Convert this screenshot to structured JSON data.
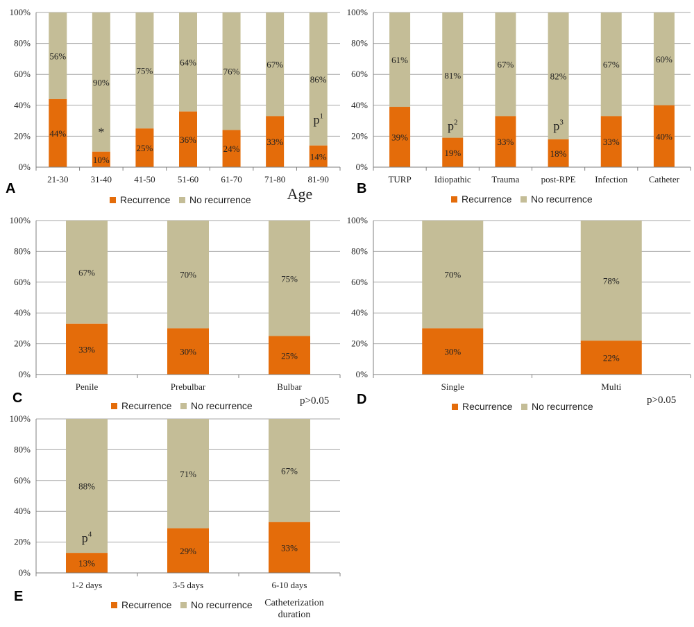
{
  "colors": {
    "recurrence": "#E46C0A",
    "no_recurrence": "#C4BD97",
    "grid": "#A6A6A6",
    "axis": "#7F7F7F",
    "text": "#222222"
  },
  "chart_data": [
    {
      "panel": "A",
      "type": "bar",
      "stacked": true,
      "categories": [
        "21-30",
        "31-40",
        "41-50",
        "51-60",
        "61-70",
        "71-80",
        "81-90"
      ],
      "series": [
        {
          "name": "Recurrence",
          "values": [
            44,
            10,
            25,
            36,
            24,
            33,
            14
          ]
        },
        {
          "name": "No recurrence",
          "values": [
            56,
            90,
            75,
            64,
            76,
            67,
            86
          ]
        }
      ],
      "value_labels": {
        "recurrence": [
          "44%",
          "10%",
          "25%",
          "36%",
          "24%",
          "33%",
          "14%"
        ],
        "no_recurrence": [
          "56%",
          "90%",
          "75%",
          "64%",
          "76%",
          "67%",
          "86%"
        ]
      },
      "yticks": [
        "0%",
        "20%",
        "40%",
        "60%",
        "80%",
        "100%"
      ],
      "ylim": [
        0,
        100
      ],
      "xlabel": "Age",
      "annotations": [
        {
          "category_index": 1,
          "at_value": 20,
          "text": "*",
          "sup": ""
        },
        {
          "category_index": 6,
          "at_value": 28,
          "text": "p",
          "sup": "1"
        }
      ],
      "legend": [
        "Recurrence",
        "No recurrence"
      ],
      "legend_position": "bottom",
      "grid": true
    },
    {
      "panel": "B",
      "type": "bar",
      "stacked": true,
      "categories": [
        "TURP",
        "Idiopathic",
        "Trauma",
        "post-RPE",
        "Infection",
        "Catheter"
      ],
      "series": [
        {
          "name": "Recurrence",
          "values": [
            39,
            19,
            33,
            18,
            33,
            40
          ]
        },
        {
          "name": "No recurrence",
          "values": [
            61,
            81,
            67,
            82,
            67,
            60
          ]
        }
      ],
      "value_labels": {
        "recurrence": [
          "39%",
          "19%",
          "33%",
          "18%",
          "33%",
          "40%"
        ],
        "no_recurrence": [
          "61%",
          "81%",
          "67%",
          "82%",
          "67%",
          "60%"
        ]
      },
      "yticks": [
        "0%",
        "20%",
        "40%",
        "60%",
        "80%",
        "100%"
      ],
      "ylim": [
        0,
        100
      ],
      "annotations": [
        {
          "category_index": 1,
          "at_value": 24,
          "text": "p",
          "sup": "2"
        },
        {
          "category_index": 3,
          "at_value": 24,
          "text": "p",
          "sup": "3"
        }
      ],
      "legend": [
        "Recurrence",
        "No recurrence"
      ],
      "legend_position": "bottom",
      "grid": true
    },
    {
      "panel": "C",
      "type": "bar",
      "stacked": true,
      "categories": [
        "Penile",
        "Prebulbar",
        "Bulbar"
      ],
      "series": [
        {
          "name": "Recurrence",
          "values": [
            33,
            30,
            25
          ]
        },
        {
          "name": "No recurrence",
          "values": [
            67,
            70,
            75
          ]
        }
      ],
      "value_labels": {
        "recurrence": [
          "33%",
          "30%",
          "25%"
        ],
        "no_recurrence": [
          "67%",
          "70%",
          "75%"
        ]
      },
      "yticks": [
        "0%",
        "20%",
        "40%",
        "60%",
        "80%",
        "100%"
      ],
      "ylim": [
        0,
        100
      ],
      "note": "p>0.05",
      "annotations": [],
      "legend": [
        "Recurrence",
        "No recurrence"
      ],
      "legend_position": "bottom",
      "grid": true
    },
    {
      "panel": "D",
      "type": "bar",
      "stacked": true,
      "categories": [
        "Single",
        "Multi"
      ],
      "series": [
        {
          "name": "Recurrence",
          "values": [
            30,
            22
          ]
        },
        {
          "name": "No recurrence",
          "values": [
            70,
            78
          ]
        }
      ],
      "value_labels": {
        "recurrence": [
          "30%",
          "22%"
        ],
        "no_recurrence": [
          "70%",
          "78%"
        ]
      },
      "yticks": [
        "0%",
        "20%",
        "40%",
        "60%",
        "80%",
        "100%"
      ],
      "ylim": [
        0,
        100
      ],
      "note": "p>0.05",
      "annotations": [],
      "legend": [
        "Recurrence",
        "No recurrence"
      ],
      "legend_position": "bottom",
      "grid": true
    },
    {
      "panel": "E",
      "type": "bar",
      "stacked": true,
      "categories": [
        "1-2 days",
        "3-5 days",
        "6-10 days"
      ],
      "series": [
        {
          "name": "Recurrence",
          "values": [
            13,
            29,
            33
          ]
        },
        {
          "name": "No recurrence",
          "values": [
            88,
            71,
            67
          ]
        }
      ],
      "value_labels": {
        "recurrence": [
          "13%",
          "29%",
          "33%"
        ],
        "no_recurrence": [
          "88%",
          "71%",
          "67%"
        ]
      },
      "yticks": [
        "0%",
        "20%",
        "40%",
        "60%",
        "80%",
        "100%"
      ],
      "ylim": [
        0,
        100
      ],
      "xlabel_lines": [
        "Catheterization",
        "duration"
      ],
      "annotations": [
        {
          "category_index": 0,
          "at_value": 20,
          "text": "p",
          "sup": "4"
        }
      ],
      "legend": [
        "Recurrence",
        "No recurrence"
      ],
      "legend_position": "bottom",
      "grid": true
    }
  ]
}
